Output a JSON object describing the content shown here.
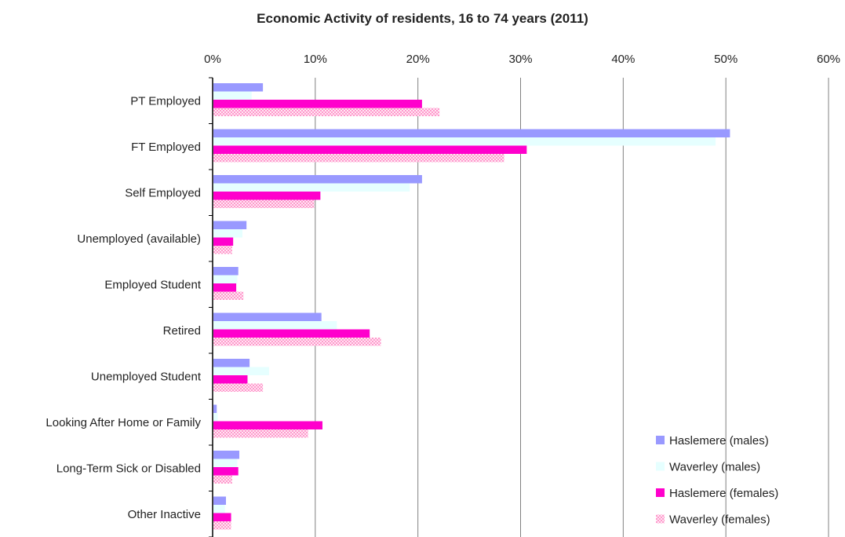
{
  "chart_data": {
    "type": "bar",
    "orientation": "horizontal",
    "title": "Economic Activity of residents, 16 to 74 years (2011)",
    "xlabel": "",
    "ylabel": "",
    "xlim": [
      0,
      60
    ],
    "x_ticks": [
      "0%",
      "10%",
      "20%",
      "30%",
      "40%",
      "50%",
      "60%"
    ],
    "x_tick_values": [
      0,
      10,
      20,
      30,
      40,
      50,
      60
    ],
    "grid": true,
    "legend_position": "bottom-right",
    "categories": [
      "PT Employed",
      "FT Employed",
      "Self Employed",
      "Unemployed (available)",
      "Employed Student",
      "Retired",
      "Unemployed Student",
      "Looking After Home or Family",
      "Long-Term Sick or Disabled",
      "Other Inactive"
    ],
    "series": [
      {
        "name": "Haslemere (males)",
        "color": "#9999ff",
        "pattern": "solid",
        "values": [
          4.9,
          50.4,
          20.4,
          3.3,
          2.5,
          10.6,
          3.6,
          0.4,
          2.6,
          1.3
        ]
      },
      {
        "name": "Waverley (males)",
        "color": "#e6ffff",
        "pattern": "solid",
        "values": [
          3.8,
          49.0,
          19.2,
          2.9,
          2.4,
          12.1,
          5.5,
          0.5,
          2.4,
          1.2
        ]
      },
      {
        "name": "Haslemere (females)",
        "color": "#ff00cc",
        "pattern": "solid",
        "values": [
          20.4,
          30.6,
          10.5,
          2.0,
          2.3,
          15.3,
          3.4,
          10.7,
          2.5,
          1.8
        ]
      },
      {
        "name": "Waverley (females)",
        "color": "#ffb3dd",
        "pattern": "checker",
        "values": [
          22.1,
          28.4,
          9.9,
          1.9,
          3.0,
          16.4,
          4.9,
          9.3,
          1.9,
          1.8
        ]
      }
    ]
  }
}
